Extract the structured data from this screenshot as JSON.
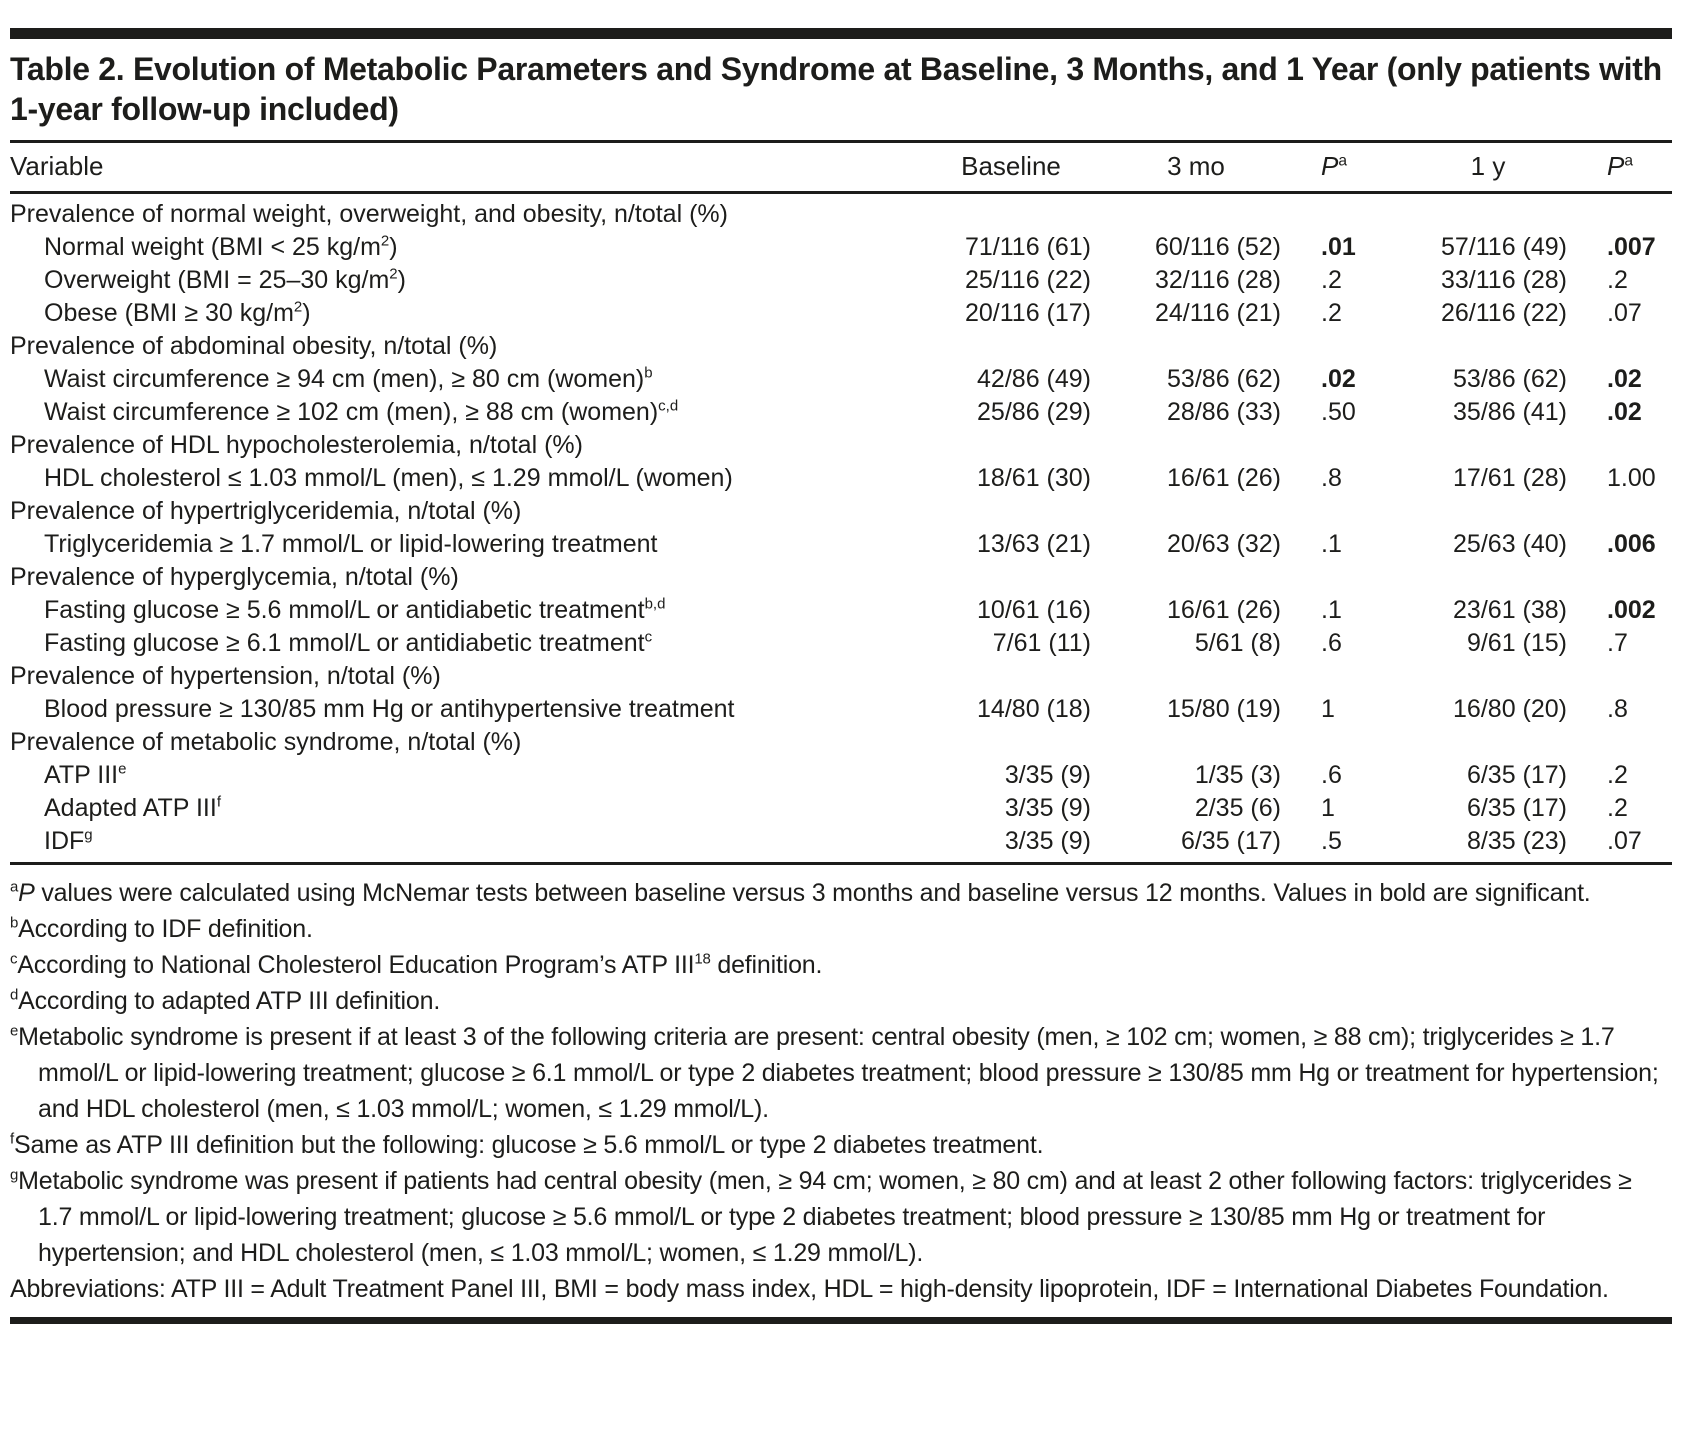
{
  "title": "Table 2. Evolution of Metabolic Parameters and Syndrome at Baseline, 3 Months, and 1 Year (only patients with 1-year follow-up included)",
  "table": {
    "columns": [
      "Variable",
      "Baseline",
      "3 mo",
      "~{P}^{a}",
      "1 y",
      "~{P}^{a}"
    ],
    "rows": [
      {
        "type": "section",
        "label": "Prevalence of normal weight, overweight, and obesity, n/total (%)",
        "baseline": "",
        "mo3": "",
        "p1": "",
        "y1": "",
        "p2": "",
        "bold": []
      },
      {
        "type": "item",
        "label": "Normal weight (BMI < 25 kg/m^{2})",
        "baseline": "71/116 (61)",
        "mo3": "60/116 (52)",
        "p1": ".01",
        "y1": "57/116 (49)",
        "p2": ".007",
        "bold": [
          "p1",
          "p2"
        ]
      },
      {
        "type": "item",
        "label": "Overweight (BMI = 25–30 kg/m^{2})",
        "baseline": "25/116 (22)",
        "mo3": "32/116 (28)",
        "p1": ".2",
        "y1": "33/116 (28)",
        "p2": ".2",
        "bold": []
      },
      {
        "type": "item",
        "label": "Obese (BMI ≥ 30 kg/m^{2})",
        "baseline": "20/116 (17)",
        "mo3": "24/116 (21)",
        "p1": ".2",
        "y1": "26/116 (22)",
        "p2": ".07",
        "bold": []
      },
      {
        "type": "section",
        "label": "Prevalence of abdominal obesity, n/total (%)",
        "baseline": "",
        "mo3": "",
        "p1": "",
        "y1": "",
        "p2": "",
        "bold": []
      },
      {
        "type": "item",
        "label": "Waist circumference ≥ 94 cm (men), ≥ 80 cm (women)^{b}",
        "baseline": "42/86 (49)",
        "mo3": "53/86 (62)",
        "p1": ".02",
        "y1": "53/86 (62)",
        "p2": ".02",
        "bold": [
          "p1",
          "p2"
        ]
      },
      {
        "type": "item",
        "label": "Waist circumference ≥ 102 cm (men), ≥ 88 cm (women)^{c,d}",
        "baseline": "25/86 (29)",
        "mo3": "28/86 (33)",
        "p1": ".50",
        "y1": "35/86 (41)",
        "p2": ".02",
        "bold": [
          "p2"
        ]
      },
      {
        "type": "section",
        "label": "Prevalence of HDL hypocholesterolemia, n/total (%)",
        "baseline": "",
        "mo3": "",
        "p1": "",
        "y1": "",
        "p2": "",
        "bold": []
      },
      {
        "type": "item",
        "label": "HDL cholesterol ≤ 1.03 mmol/L (men), ≤ 1.29 mmol/L (women)",
        "baseline": "18/61 (30)",
        "mo3": "16/61 (26)",
        "p1": ".8",
        "y1": "17/61 (28)",
        "p2": "1.00",
        "bold": []
      },
      {
        "type": "section",
        "label": "Prevalence of hypertriglyceridemia, n/total (%)",
        "baseline": "",
        "mo3": "",
        "p1": "",
        "y1": "",
        "p2": "",
        "bold": []
      },
      {
        "type": "item",
        "label": "Triglyceridemia ≥ 1.7 mmol/L or lipid-lowering treatment",
        "baseline": "13/63 (21)",
        "mo3": "20/63 (32)",
        "p1": ".1",
        "y1": "25/63 (40)",
        "p2": ".006",
        "bold": [
          "p2"
        ]
      },
      {
        "type": "section",
        "label": "Prevalence of hyperglycemia, n/total (%)",
        "baseline": "",
        "mo3": "",
        "p1": "",
        "y1": "",
        "p2": "",
        "bold": []
      },
      {
        "type": "item",
        "label": "Fasting glucose ≥ 5.6 mmol/L or antidiabetic treatment^{b,d}",
        "baseline": "10/61 (16)",
        "mo3": "16/61 (26)",
        "p1": ".1",
        "y1": "23/61 (38)",
        "p2": ".002",
        "bold": [
          "p2"
        ]
      },
      {
        "type": "item",
        "label": "Fasting glucose ≥ 6.1 mmol/L or antidiabetic treatment^{c}",
        "baseline": "7/61 (11)",
        "mo3": "5/61 (8)",
        "p1": ".6",
        "y1": "9/61 (15)",
        "p2": ".7",
        "bold": []
      },
      {
        "type": "section",
        "label": "Prevalence of hypertension, n/total (%)",
        "baseline": "",
        "mo3": "",
        "p1": "",
        "y1": "",
        "p2": "",
        "bold": []
      },
      {
        "type": "item",
        "label": "Blood pressure ≥ 130/85 mm Hg or antihypertensive treatment",
        "baseline": "14/80 (18)",
        "mo3": "15/80 (19)",
        "p1": "1",
        "y1": "16/80 (20)",
        "p2": ".8",
        "bold": []
      },
      {
        "type": "section",
        "label": "Prevalence of metabolic syndrome, n/total (%)",
        "baseline": "",
        "mo3": "",
        "p1": "",
        "y1": "",
        "p2": "",
        "bold": []
      },
      {
        "type": "item",
        "label": "ATP III^{e}",
        "baseline": "3/35 (9)",
        "mo3": "1/35 (3)",
        "p1": ".6",
        "y1": "6/35 (17)",
        "p2": ".2",
        "bold": []
      },
      {
        "type": "item",
        "label": "Adapted ATP III^{f}",
        "baseline": "3/35 (9)",
        "mo3": "2/35 (6)",
        "p1": "1",
        "y1": "6/35 (17)",
        "p2": ".2",
        "bold": []
      },
      {
        "type": "item",
        "label": "IDF^{g}",
        "baseline": "3/35 (9)",
        "mo3": "6/35 (17)",
        "p1": ".5",
        "y1": "8/35 (23)",
        "p2": ".07",
        "bold": []
      }
    ]
  },
  "footnotes": [
    "^{a}~{P} values were calculated using McNemar tests between baseline versus 3 months and baseline versus 12 months. Values in bold are significant.",
    "^{b}According to IDF definition.",
    "^{c}According to National Cholesterol Education Program’s ATP III^{18} definition.",
    "^{d}According to adapted ATP III definition.",
    "^{e}Metabolic syndrome is present if at least 3 of the following criteria are present: central obesity (men, ≥ 102 cm; women, ≥ 88 cm); triglycerides ≥ 1.7 mmol/L or lipid-lowering treatment; glucose ≥ 6.1 mmol/L or type 2 diabetes treatment; blood pressure ≥ 130/85 mm Hg or treatment for hypertension; and HDL cholesterol (men, ≤ 1.03 mmol/L; women, ≤ 1.29 mmol/L).",
    "^{f}Same as ATP III definition but the following: glucose ≥ 5.6 mmol/L or type 2 diabetes treatment.",
    "^{g}Metabolic syndrome was present if patients had central obesity (men, ≥ 94 cm; women, ≥ 80 cm) and at least 2 other following factors: triglycerides ≥ 1.7 mmol/L or lipid-lowering treatment; glucose ≥ 5.6 mmol/L or type 2 diabetes treatment; blood pressure ≥ 130/85 mm Hg or treatment for hypertension; and HDL cholesterol (men, ≤ 1.03 mmol/L; women, ≤ 1.29 mmol/L).",
    "Abbreviations: ATP III = Adult Treatment Panel III, BMI = body mass index, HDL = high-density lipoprotein, IDF = International Diabetes Foundation."
  ]
}
